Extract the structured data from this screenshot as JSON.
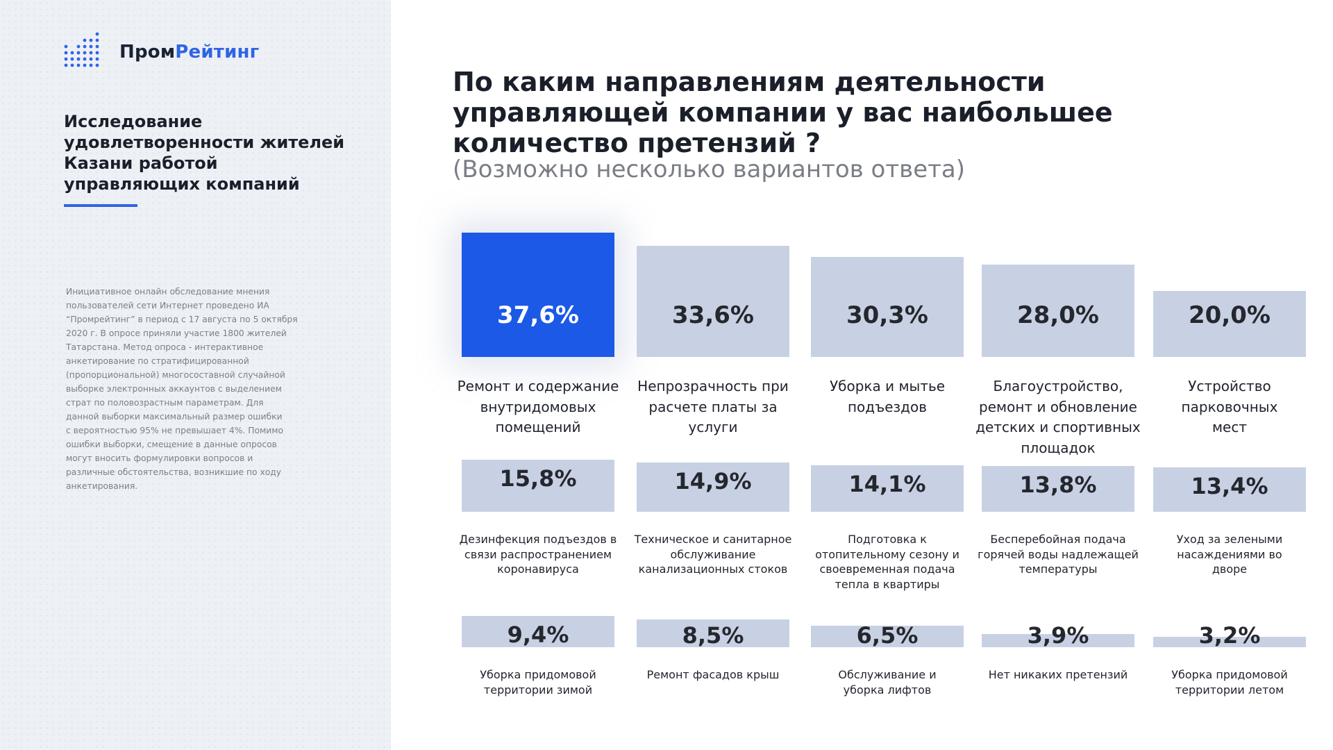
{
  "brand": {
    "name_part1": "Пром",
    "name_part2": "Рейтинг",
    "accent_color": "#2f64e4",
    "icon": "dot-bar-chart-icon"
  },
  "sidebar": {
    "study_title_lines": [
      "Исследование",
      "удовлетворенности жителей",
      "Казани работой",
      "управляющих компаний"
    ],
    "methodology_lines": [
      "Инициативное онлайн обследование мнения",
      "пользователей сети Интернет проведено ИА",
      "“Промрейтинг” в период с 17 августа по 5 октября",
      "2020 г. В опросе приняли участие 1800 жителей",
      "Татарстана. Метод опроса - интерактивное",
      "анкетирование по стратифицированной",
      "(пропорциональной) многосоставной случайной",
      "выборке электронных аккаунтов с выделением",
      "страт по половозрастным параметрам. Для",
      "данной выборки максимальный размер ошибки",
      "с вероятностью 95% не превышает 4%. Помимо",
      "ошибки выборки, смещение в данные опросов",
      "могут вносить формулировки вопросов и",
      "различные обстоятельства, возникшие по ходу",
      "анкетирования."
    ]
  },
  "question": {
    "title_lines": [
      "По каким направлениям деятельности",
      "управляющей компании у вас наибольшее",
      "количество претензий ?"
    ],
    "subtitle": "(Возможно несколько вариантов ответа)"
  },
  "chart_data": {
    "type": "bar",
    "title": "По каким направлениям деятельности управляющей компании у вас наибольшее количество претензий ?",
    "subtitle": "(Возможно несколько вариантов ответа)",
    "unit": "%",
    "highlight_color": "#1b59e6",
    "bar_color": "#c8d1e3",
    "items": [
      {
        "value": 37.6,
        "value_label": "37,6%",
        "label_lines": [
          "Ремонт и содержание",
          "внутридомовых",
          "помещений"
        ],
        "highlight": true
      },
      {
        "value": 33.6,
        "value_label": "33,6%",
        "label_lines": [
          "Непрозрачность при",
          "расчете платы за",
          "услуги"
        ]
      },
      {
        "value": 30.3,
        "value_label": "30,3%",
        "label_lines": [
          "Уборка и мытье",
          "подъездов"
        ]
      },
      {
        "value": 28.0,
        "value_label": "28,0%",
        "label_lines": [
          "Благоустройство,",
          "ремонт и обновление",
          "детских и спортивных",
          "площадок"
        ]
      },
      {
        "value": 20.0,
        "value_label": "20,0%",
        "label_lines": [
          "Устройство",
          "парковочных",
          "мест"
        ]
      },
      {
        "value": 15.8,
        "value_label": "15,8%",
        "label_lines": [
          "Дезинфекция подъездов в",
          "связи распространением",
          "коронавируса"
        ]
      },
      {
        "value": 14.9,
        "value_label": "14,9%",
        "label_lines": [
          "Техническое и санитарное",
          "обслуживание",
          "канализационных стоков"
        ]
      },
      {
        "value": 14.1,
        "value_label": "14,1%",
        "label_lines": [
          "Подготовка к",
          "отопительному сезону и",
          "своевременная подача",
          "тепла в квартиры"
        ]
      },
      {
        "value": 13.8,
        "value_label": "13,8%",
        "label_lines": [
          "Бесперебойная подача",
          "горячей воды надлежащей",
          "температуры"
        ]
      },
      {
        "value": 13.4,
        "value_label": "13,4%",
        "label_lines": [
          "Уход за зелеными",
          "насаждениями во",
          "дворе"
        ]
      },
      {
        "value": 9.4,
        "value_label": "9,4%",
        "label_lines": [
          "Уборка придомовой",
          "территории зимой"
        ]
      },
      {
        "value": 8.5,
        "value_label": "8,5%",
        "label_lines": [
          "Ремонт фасадов крыш"
        ]
      },
      {
        "value": 6.5,
        "value_label": "6,5%",
        "label_lines": [
          "Обслуживание и",
          "уборка лифтов"
        ]
      },
      {
        "value": 3.9,
        "value_label": "3,9%",
        "label_lines": [
          "Нет никаких претензий"
        ]
      },
      {
        "value": 3.2,
        "value_label": "3,2%",
        "label_lines": [
          "Уборка придомовой",
          "территории летом"
        ]
      }
    ]
  }
}
